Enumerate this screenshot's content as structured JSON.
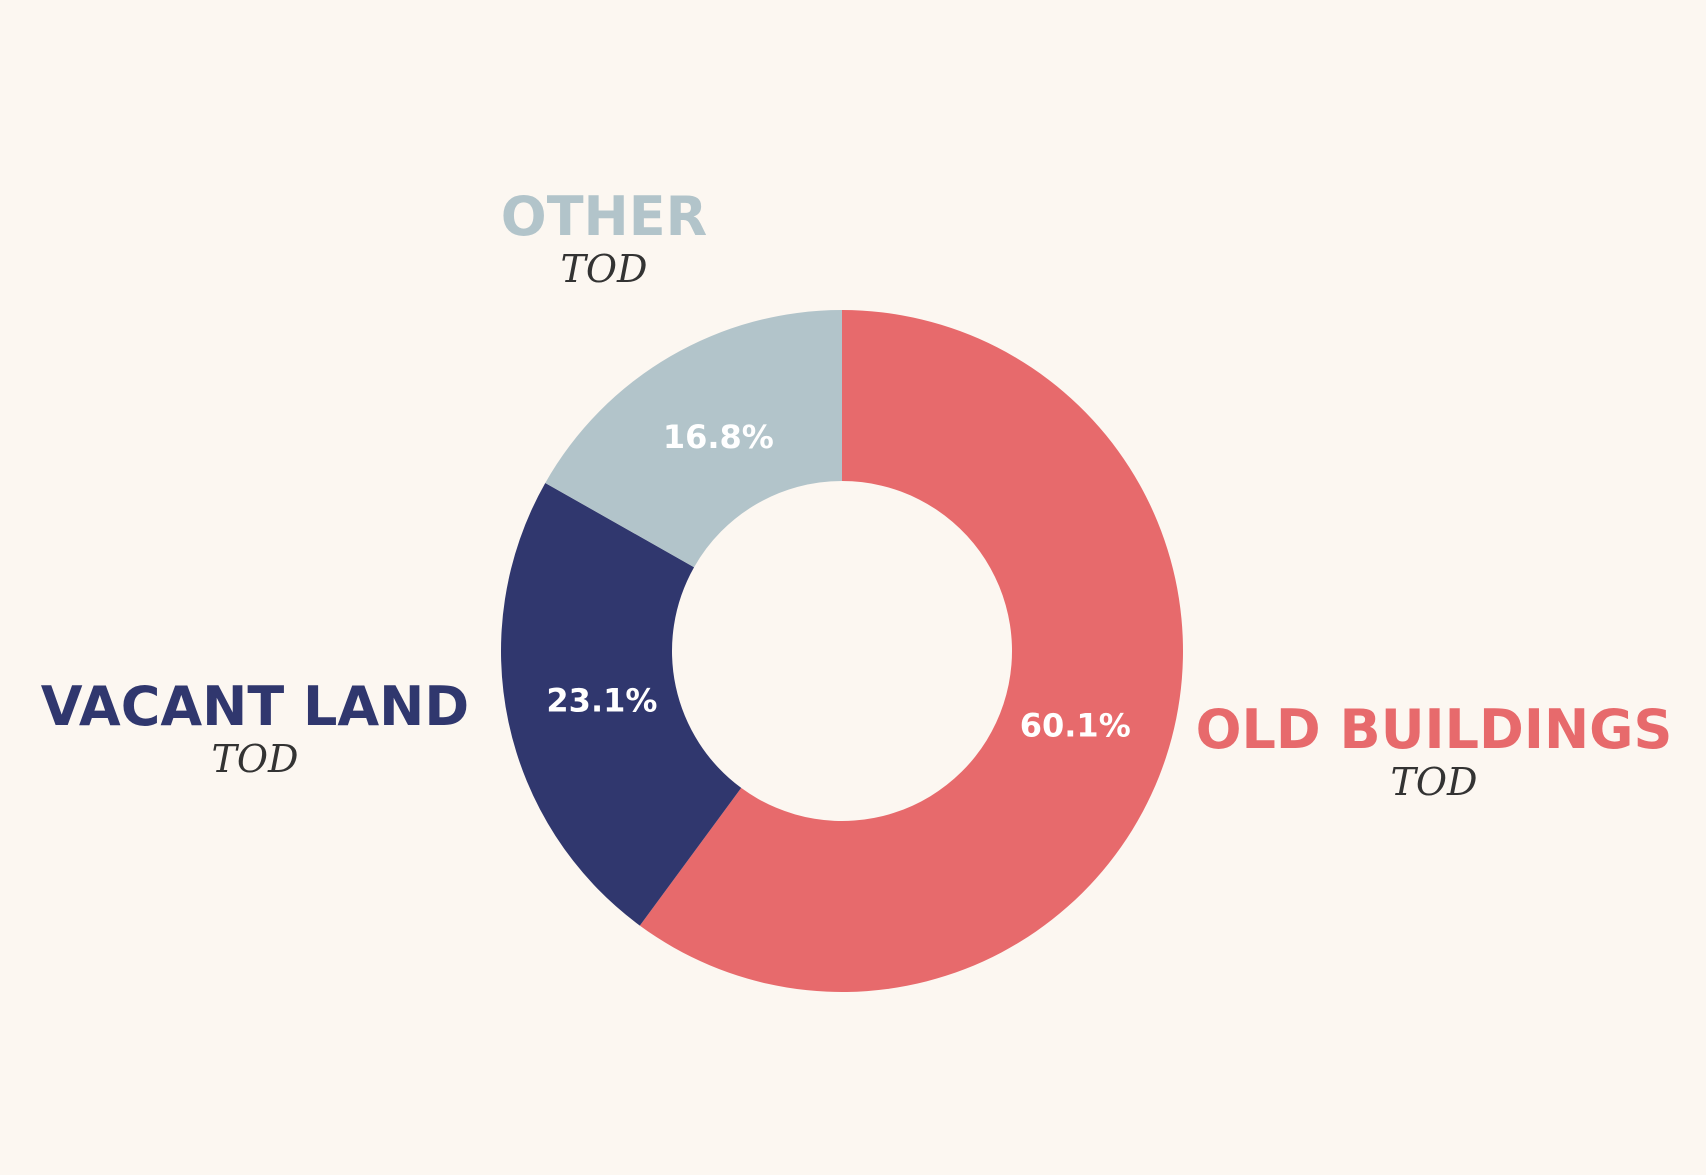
{
  "chart_data": {
    "type": "pie",
    "donut": true,
    "start_angle_deg": 0,
    "direction": "clockwise",
    "slices": [
      {
        "label": "OLD BUILDINGS",
        "sublabel": "TOD",
        "value": 60.1,
        "value_label": "60.1%",
        "color": "#e76a6c"
      },
      {
        "label": "VACANT LAND",
        "sublabel": "TOD",
        "value": 23.1,
        "value_label": "23.1%",
        "color": "#30376e"
      },
      {
        "label": "OTHER",
        "sublabel": "TOD",
        "value": 16.8,
        "value_label": "16.8%",
        "color": "#b2c4ca"
      }
    ],
    "legend": "outside labels"
  },
  "colors": {
    "background": "#fcf7f1",
    "value_text": "#ffffff",
    "sublabel_text": "#333333"
  }
}
